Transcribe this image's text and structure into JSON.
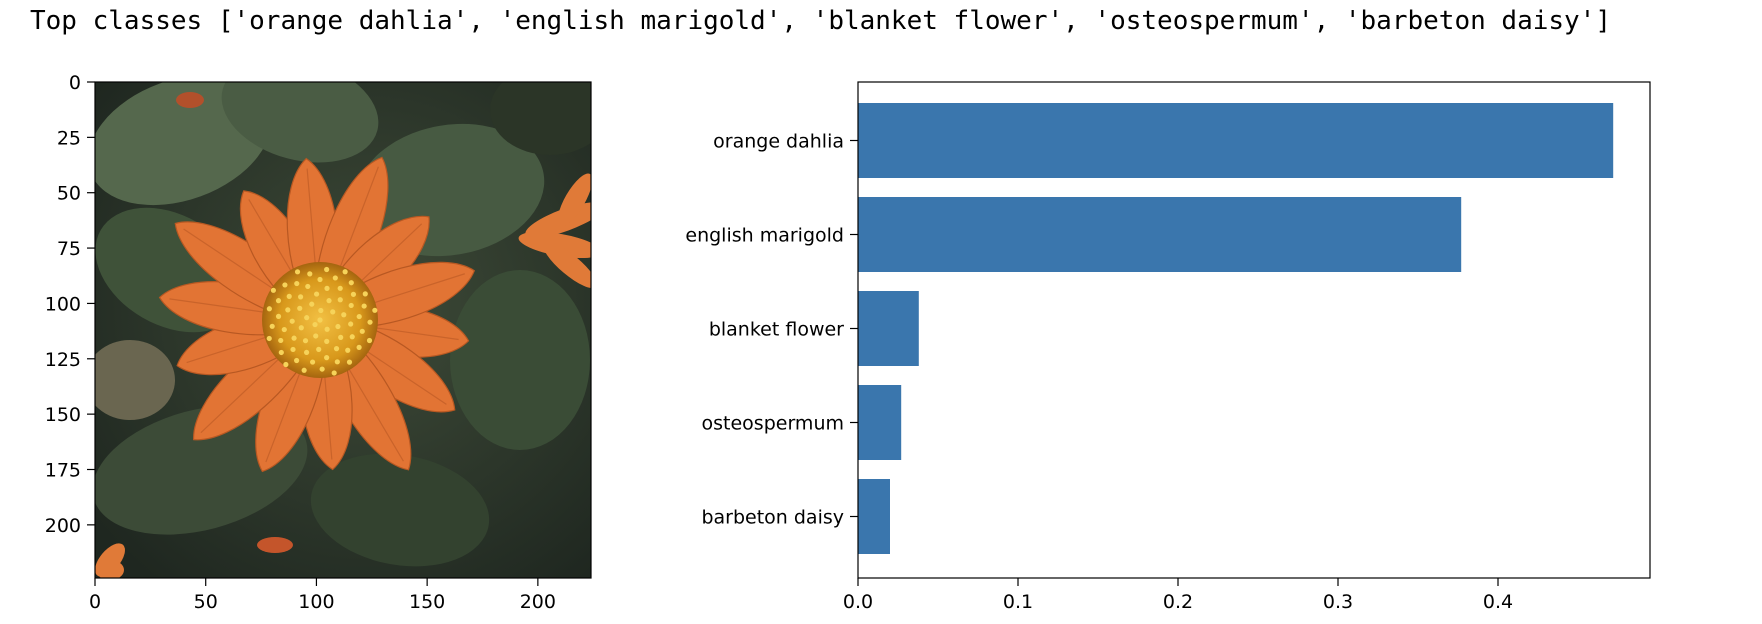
{
  "title": "Top classes ['orange dahlia', 'english marigold', 'blanket flower', 'osteospermum', 'barbeton daisy']",
  "chart_data": [
    {
      "type": "image",
      "subject": "orange flower",
      "xlim": [
        0,
        224
      ],
      "ylim": [
        224,
        0
      ],
      "x_ticks": [
        0,
        50,
        100,
        150,
        200
      ],
      "y_ticks": [
        0,
        25,
        50,
        75,
        100,
        125,
        150,
        175,
        200
      ],
      "colors": {
        "background": "#2f3a2c",
        "leaf": "#4d5f47",
        "petal": "#e27434",
        "center": "#e0a21e"
      }
    },
    {
      "type": "bar",
      "orientation": "horizontal",
      "categories": [
        "orange dahlia",
        "english marigold",
        "blanket flower",
        "osteospermum",
        "barbeton daisy"
      ],
      "values": [
        0.472,
        0.377,
        0.038,
        0.027,
        0.02
      ],
      "xlim": [
        0,
        0.495
      ],
      "x_ticks": [
        0.0,
        0.1,
        0.2,
        0.3,
        0.4
      ],
      "bar_color": "#3a76ad"
    }
  ]
}
